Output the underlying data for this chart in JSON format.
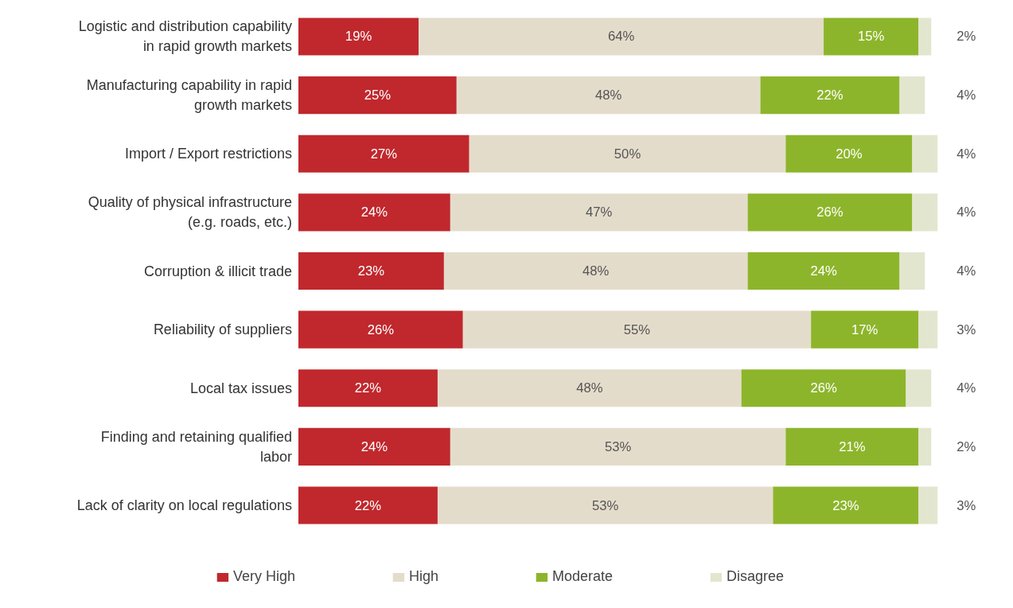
{
  "chart_data": {
    "type": "bar",
    "orientation": "horizontal",
    "stacked": true,
    "legend": "bottom",
    "categories": [
      "Logistic and distribution capability in rapid growth markets",
      "Manufacturing capability in rapid growth markets",
      "Import / Export restrictions",
      "Quality of physical infrastructure (e.g. roads, etc.)",
      "Corruption & illicit trade",
      "Reliability of suppliers",
      "Local tax issues",
      "Finding and retaining qualified labor",
      "Lack of clarity on local regulations"
    ],
    "series": [
      {
        "name": "Very High",
        "color": "#c0282d",
        "values": [
          19,
          25,
          27,
          24,
          23,
          26,
          22,
          24,
          22
        ],
        "value_labels": [
          "19%",
          "25%",
          "27%",
          "24%",
          "23%",
          "26%",
          "22%",
          "24%",
          "22%"
        ]
      },
      {
        "name": "High",
        "color": "#e4dccb",
        "values": [
          64,
          48,
          50,
          47,
          48,
          55,
          48,
          53,
          53
        ],
        "value_labels": [
          "64%",
          "48%",
          "50%",
          "47%",
          "48%",
          "55%",
          "48%",
          "53%",
          "53%"
        ]
      },
      {
        "name": "Moderate",
        "color": "#8db52b",
        "values": [
          15,
          22,
          20,
          26,
          24,
          17,
          26,
          21,
          23
        ],
        "value_labels": [
          "15%",
          "22%",
          "20%",
          "26%",
          "24%",
          "17%",
          "26%",
          "21%",
          "23%"
        ]
      },
      {
        "name": "Disagree",
        "color": "#e2e6cf",
        "values": [
          2,
          4,
          4,
          4,
          4,
          3,
          4,
          2,
          3
        ],
        "value_labels": [
          "2%",
          "4%",
          "4%",
          "4%",
          "4%",
          "3%",
          "4%",
          "2%",
          "3%"
        ]
      }
    ]
  }
}
